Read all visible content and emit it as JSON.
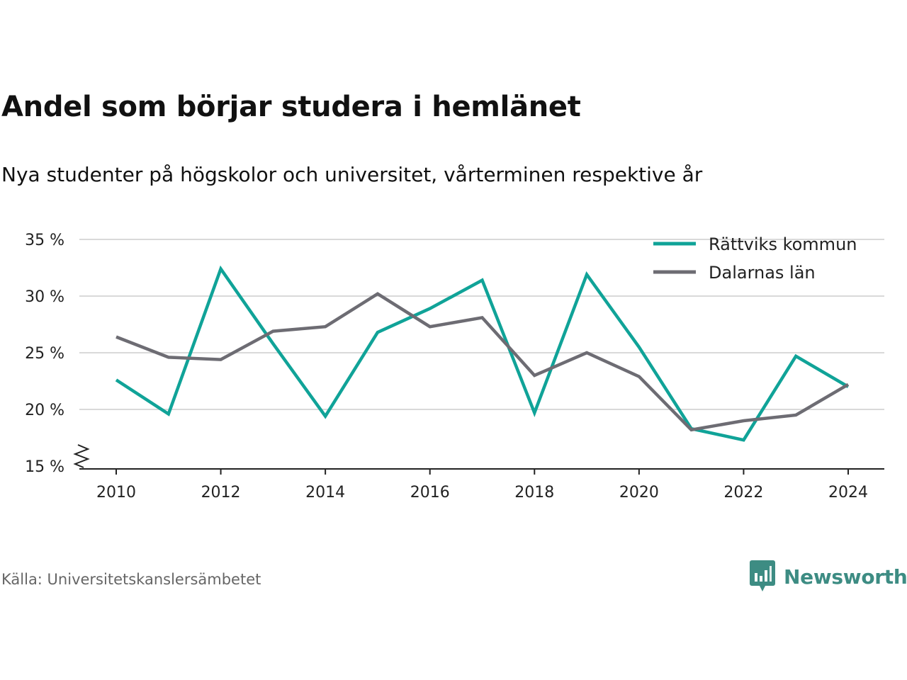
{
  "header": {
    "title": "Andel som börjar studera i hemlänet",
    "subtitle": "Nya studenter på högskolor och universitet, vårterminen respektive år"
  },
  "footer": {
    "source": "Källa: Universitetskanslersämbetet",
    "brand": "Newsworthy"
  },
  "colors": {
    "brand": "#3d8c83",
    "series_teal": "#10a398",
    "series_gray": "#6d6c73",
    "grid": "#d9d9d9"
  },
  "chart_data": {
    "type": "line",
    "x": [
      2010,
      2011,
      2012,
      2013,
      2014,
      2015,
      2016,
      2017,
      2018,
      2019,
      2020,
      2021,
      2022,
      2023,
      2024
    ],
    "series": [
      {
        "name": "Rättviks kommun",
        "color": "#10a398",
        "values": [
          22.6,
          19.6,
          32.4,
          25.8,
          19.4,
          26.8,
          28.9,
          31.4,
          19.7,
          31.9,
          25.5,
          18.3,
          17.3,
          24.7,
          22.0
        ]
      },
      {
        "name": "Dalarnas län",
        "color": "#6d6c73",
        "values": [
          26.4,
          24.6,
          24.4,
          26.9,
          27.3,
          30.2,
          27.3,
          28.1,
          23.0,
          25.0,
          22.9,
          18.2,
          19.0,
          19.5,
          22.2
        ]
      }
    ],
    "y_ticks": [
      15,
      20,
      25,
      30,
      35
    ],
    "y_tick_labels": [
      "15 %",
      "20 %",
      "25 %",
      "30 %",
      "35 %"
    ],
    "x_ticks": [
      2010,
      2012,
      2014,
      2016,
      2018,
      2020,
      2022,
      2024
    ],
    "x_tick_labels": [
      "2010",
      "2012",
      "2014",
      "2016",
      "2018",
      "2020",
      "2022",
      "2024"
    ],
    "ylim": [
      15,
      35
    ],
    "xlim": [
      2010,
      2024
    ],
    "grid": "horizontal",
    "axis_break": true,
    "legend_position": "top-right"
  }
}
